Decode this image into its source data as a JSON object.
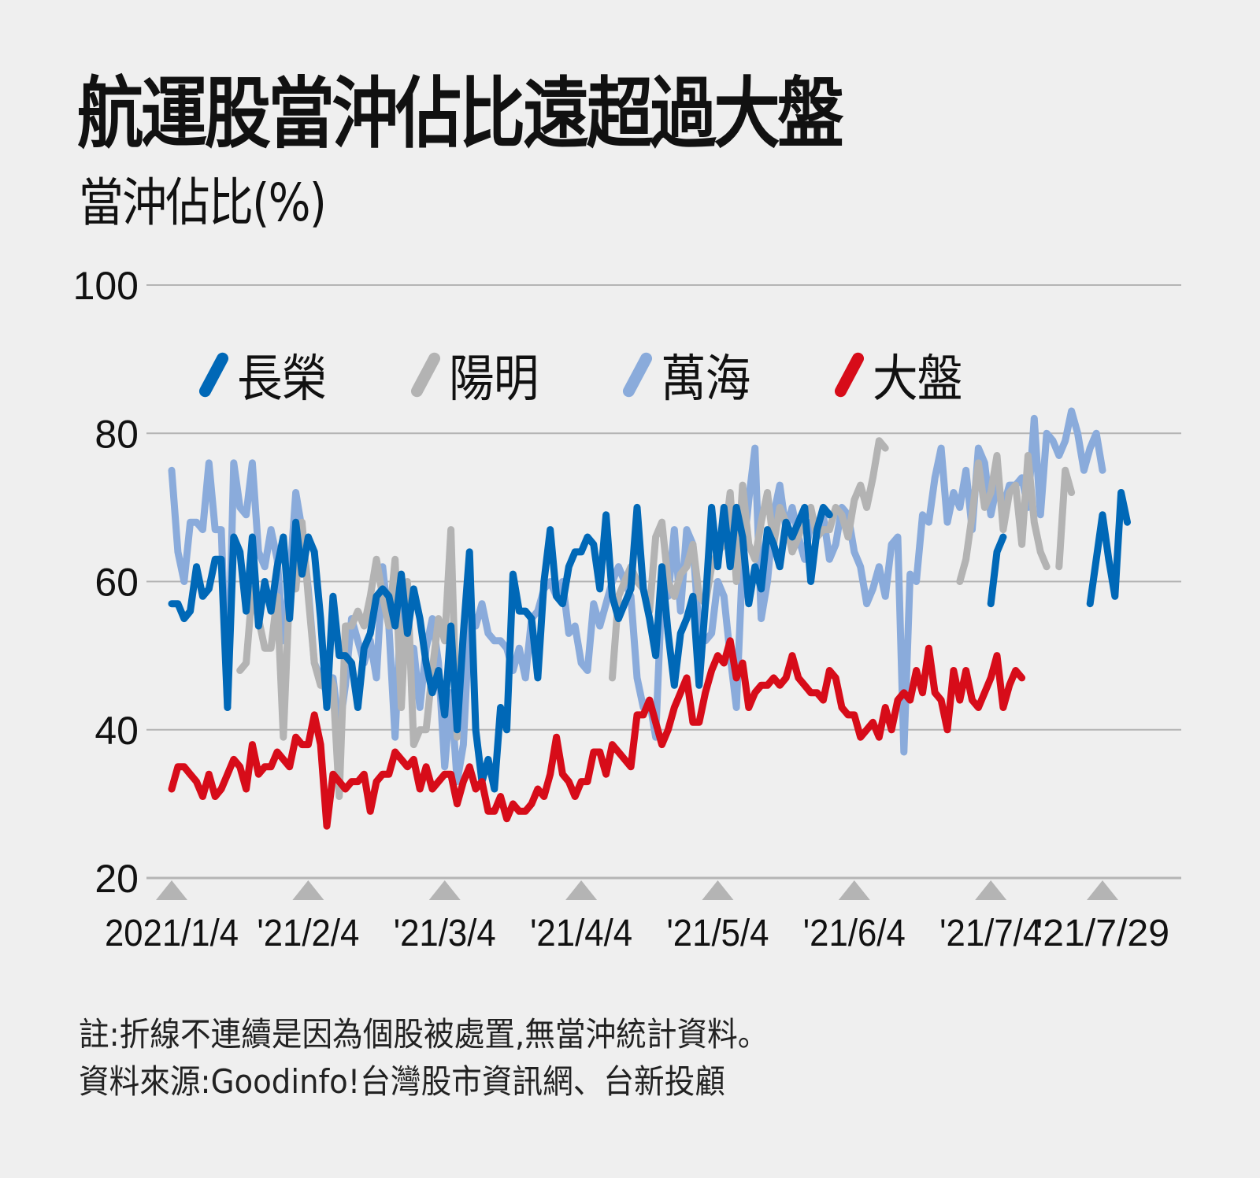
{
  "header": {
    "title": "航運股當沖佔比遠超過大盤",
    "subtitle": "當沖佔比(%)"
  },
  "legend": [
    {
      "label": "長榮",
      "color": "#0068b7"
    },
    {
      "label": "陽明",
      "color": "#b3b3b3"
    },
    {
      "label": "萬海",
      "color": "#8aabdb"
    },
    {
      "label": "大盤",
      "color": "#d70c19"
    }
  ],
  "notes": {
    "note": "註:折線不連續是因為個股被處置,無當沖統計資料。",
    "source": "資料來源:Goodinfo!台灣股市資訊網、台新投顧"
  },
  "colors": {
    "background": "#efefef",
    "grid": "#b4b4b4",
    "tick_marker": "#b4b4b4"
  },
  "chart_data": {
    "type": "line",
    "title": "航運股當沖佔比遠超過大盤",
    "ylabel": "當沖佔比(%)",
    "xlabel": "",
    "ylim": [
      20,
      100
    ],
    "yticks": [
      20,
      40,
      60,
      80,
      100
    ],
    "grid": true,
    "legend_position": "top-inside",
    "x_tick_labels": [
      "2021/1/4",
      "'21/2/4",
      "'21/3/4",
      "'21/4/4",
      "'21/5/4",
      "'21/6/4",
      "'21/7/4",
      "'21/7/29"
    ],
    "x_tick_index": [
      0,
      22,
      44,
      66,
      88,
      110,
      132,
      150
    ],
    "x_range": [
      0,
      151
    ],
    "annotation": "折線不連續是因為個股被處置,無當沖統計資料",
    "series": [
      {
        "name": "萬海",
        "color": "#8aabdb",
        "values": [
          75,
          64,
          60,
          68,
          68,
          67,
          76,
          67,
          67,
          43,
          76,
          70,
          69,
          76,
          64,
          62,
          67,
          63,
          52,
          60,
          72,
          67,
          59,
          49,
          47,
          45,
          47,
          40,
          46,
          55,
          52,
          49,
          52,
          47,
          62,
          54,
          39,
          57,
          50,
          51,
          43,
          51,
          55,
          49,
          35,
          45,
          33,
          38,
          55,
          54,
          57,
          53,
          52,
          52,
          51,
          48,
          51,
          47,
          55,
          56,
          59,
          60,
          58,
          60,
          53,
          54,
          49,
          48,
          57,
          54,
          57,
          60,
          62,
          60,
          58,
          47,
          43,
          44,
          39,
          59,
          58,
          67,
          56,
          67,
          65,
          53,
          52,
          53,
          60,
          58,
          50,
          43,
          63,
          71,
          78,
          55,
          60,
          69,
          73,
          67,
          70,
          66,
          63,
          68,
          67,
          69,
          63,
          65,
          70,
          69,
          64,
          62,
          57,
          59,
          62,
          58,
          65,
          66,
          37,
          61,
          60,
          69,
          68,
          74,
          78,
          68,
          72,
          70,
          75,
          67,
          78,
          76,
          69,
          73,
          70,
          73,
          73,
          74,
          70,
          82,
          69,
          80,
          79,
          77,
          79,
          83,
          80,
          75,
          78,
          80,
          75,
          null
        ]
      },
      {
        "name": "陽明",
        "color": "#b3b3b3",
        "values": [
          null,
          null,
          null,
          null,
          null,
          null,
          null,
          null,
          null,
          null,
          null,
          48,
          49,
          59,
          55,
          51,
          51,
          58,
          39,
          59,
          59,
          68,
          58,
          49,
          46,
          48,
          46,
          31,
          54,
          54,
          56,
          54,
          58,
          63,
          58,
          54,
          63,
          43,
          60,
          38,
          40,
          40,
          48,
          55,
          52,
          67,
          39,
          null,
          null,
          null,
          null,
          null,
          null,
          null,
          null,
          null,
          null,
          null,
          null,
          null,
          null,
          null,
          null,
          null,
          null,
          null,
          null,
          null,
          null,
          null,
          null,
          47,
          58,
          60,
          62,
          60,
          59,
          56,
          66,
          68,
          60,
          58,
          61,
          62,
          65,
          58,
          57,
          62,
          64,
          65,
          72,
          60,
          73,
          65,
          63,
          68,
          72,
          65,
          70,
          68,
          64,
          66,
          69,
          70,
          66,
          67,
          67,
          70,
          69,
          66,
          71,
          73,
          70,
          74,
          79,
          78,
          null,
          null,
          null,
          null,
          null,
          null,
          null,
          null,
          null,
          null,
          null,
          60,
          63,
          69,
          76,
          70,
          72,
          77,
          67,
          72,
          73,
          65,
          77,
          68,
          64,
          62,
          null,
          62,
          75,
          72,
          null
        ]
      },
      {
        "name": "長榮",
        "color": "#0068b7",
        "values": [
          57,
          57,
          55,
          56,
          62,
          58,
          59,
          63,
          63,
          43,
          66,
          64,
          56,
          66,
          54,
          60,
          56,
          62,
          66,
          55,
          68,
          61,
          66,
          64,
          55,
          43,
          58,
          50,
          50,
          49,
          43,
          51,
          53,
          58,
          59,
          58,
          54,
          61,
          53,
          59,
          55,
          49,
          45,
          48,
          42,
          54,
          40,
          53,
          64,
          40,
          33,
          36,
          32,
          43,
          40,
          61,
          56,
          56,
          55,
          47,
          60,
          67,
          58,
          57,
          62,
          64,
          64,
          66,
          65,
          59,
          69,
          58,
          55,
          57,
          59,
          70,
          59,
          55,
          50,
          62,
          53,
          46,
          53,
          55,
          58,
          46,
          57,
          70,
          62,
          70,
          62,
          70,
          66,
          57,
          62,
          59,
          67,
          65,
          62,
          68,
          66,
          68,
          70,
          60,
          67,
          70,
          69,
          null,
          null,
          null,
          null,
          null,
          null,
          null,
          null,
          null,
          null,
          null,
          null,
          null,
          null,
          null,
          null,
          null,
          null,
          null,
          null,
          null,
          null,
          null,
          null,
          null,
          57,
          64,
          66,
          null,
          null,
          null,
          null,
          null,
          null,
          null,
          null,
          null,
          null,
          null,
          null,
          null,
          57,
          63,
          69,
          63,
          58,
          72,
          68
        ]
      },
      {
        "name": "大盤",
        "color": "#d70c19",
        "values": [
          32,
          35,
          35,
          34,
          33,
          31,
          34,
          31,
          32,
          34,
          36,
          35,
          32,
          38,
          34,
          35,
          35,
          37,
          36,
          35,
          39,
          38,
          38,
          42,
          38,
          27,
          34,
          33,
          32,
          33,
          33,
          34,
          29,
          33,
          34,
          34,
          37,
          36,
          35,
          36,
          32,
          35,
          32,
          33,
          34,
          34,
          30,
          33,
          35,
          32,
          33,
          29,
          29,
          31,
          28,
          30,
          29,
          29,
          30,
          32,
          31,
          34,
          39,
          34,
          33,
          31,
          33,
          33,
          37,
          37,
          34,
          38,
          37,
          36,
          35,
          42,
          42,
          44,
          41,
          38,
          40,
          43,
          45,
          47,
          41,
          41,
          45,
          48,
          50,
          49,
          52,
          47,
          49,
          43,
          45,
          46,
          46,
          47,
          46,
          47,
          50,
          47,
          46,
          45,
          45,
          44,
          48,
          47,
          43,
          42,
          42,
          39,
          40,
          41,
          39,
          43,
          40,
          44,
          45,
          44,
          48,
          45,
          51,
          45,
          44,
          40,
          48,
          44,
          48,
          44,
          43,
          45,
          47,
          50,
          43,
          46,
          48,
          47,
          null,
          null,
          null,
          null,
          null,
          null,
          null,
          null,
          null,
          null,
          null,
          null,
          null
        ]
      }
    ]
  }
}
